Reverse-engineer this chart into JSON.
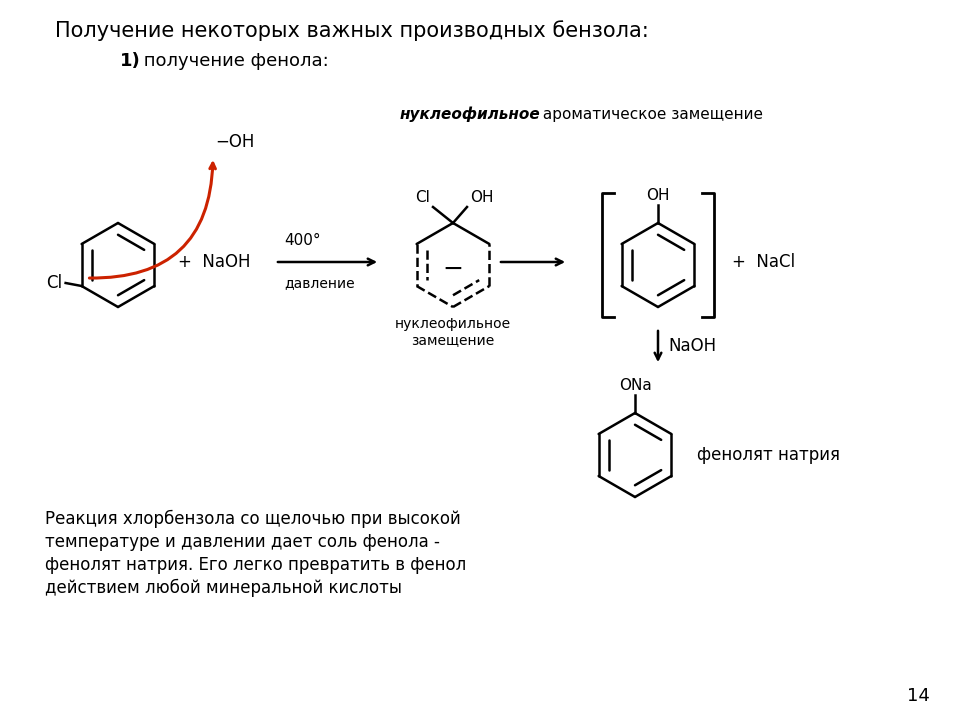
{
  "title": "Получение некоторых важных производных бензола:",
  "subtitle_bold": "1)",
  "subtitle_rest": " получение фенола:",
  "label_nucl_bold": "нуклеофильное",
  "label_nucl_rest": " ароматическое замещение",
  "label_400": "400°",
  "label_davlenie": "давление",
  "label_naoh1": "+ NaOH",
  "label_nucl2_line1": "нуклеофильное",
  "label_nucl2_line2": "замещение",
  "label_nacl": "+ NaCl",
  "label_naoh2": "NaOH",
  "label_ona": "ONa",
  "label_fenol": "фенолят натрия",
  "label_oh_arrow": "−OH",
  "bottom_text_line1": "Реакция хлорбензола со щелочью при высокой",
  "bottom_text_line2": "температуре и давлении дает соль фенола -",
  "bottom_text_line3": "фенолят натрия. Его легко превратить в фенол",
  "bottom_text_line4": "действием любой минеральной кислоты",
  "page_num": "14",
  "bg_color": "#ffffff",
  "text_color": "#000000",
  "arrow_color": "#cc2200"
}
